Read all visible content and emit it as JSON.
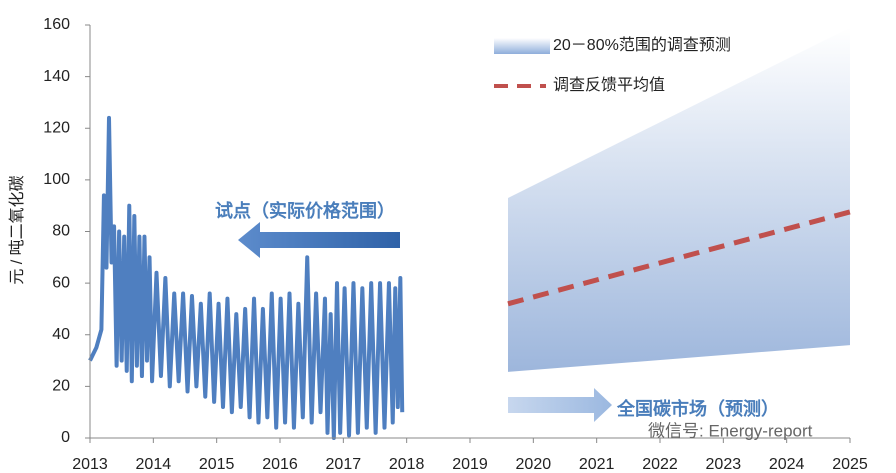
{
  "chart_data": {
    "type": "line",
    "y_label": "元 / 吨二氧化碳",
    "xlim": [
      2013,
      2025
    ],
    "xticks": [
      2013,
      2014,
      2015,
      2016,
      2017,
      2018,
      2019,
      2020,
      2021,
      2022,
      2023,
      2024,
      2025
    ],
    "ylim": [
      0,
      160
    ],
    "yticks": [
      0,
      20,
      40,
      60,
      80,
      100,
      120,
      140,
      160
    ],
    "grid": false,
    "series": [
      {
        "color": "#4f7fc0",
        "x": [
          2013.0,
          2013.1,
          2013.18,
          2013.22,
          2013.26,
          2013.3,
          2013.34,
          2013.38,
          2013.42,
          2013.46,
          2013.5,
          2013.54,
          2013.58,
          2013.62,
          2013.66,
          2013.7,
          2013.74,
          2013.78,
          2013.82,
          2013.86,
          2013.9,
          2013.94,
          2013.98,
          2014.05,
          2014.12,
          2014.19,
          2014.26,
          2014.33,
          2014.4,
          2014.47,
          2014.54,
          2014.61,
          2014.68,
          2014.75,
          2014.82,
          2014.89,
          2014.96,
          2015.03,
          2015.1,
          2015.17,
          2015.24,
          2015.31,
          2015.38,
          2015.45,
          2015.52,
          2015.59,
          2015.66,
          2015.73,
          2015.8,
          2015.87,
          2015.94,
          2016.01,
          2016.08,
          2016.15,
          2016.22,
          2016.29,
          2016.36,
          2016.43,
          2016.5,
          2016.57,
          2016.64,
          2016.71,
          2016.75,
          2016.8,
          2016.85,
          2016.9,
          2016.95,
          2017.02,
          2017.09,
          2017.16,
          2017.23,
          2017.3,
          2017.37,
          2017.44,
          2017.51,
          2017.58,
          2017.65,
          2017.72,
          2017.78,
          2017.82,
          2017.86,
          2017.9,
          2017.93
        ],
        "values": [
          30,
          35,
          42,
          94,
          66,
          124,
          68,
          82,
          28,
          80,
          30,
          78,
          26,
          90,
          22,
          86,
          28,
          78,
          24,
          78,
          30,
          70,
          22,
          64,
          24,
          62,
          20,
          56,
          22,
          56,
          18,
          55,
          20,
          52,
          16,
          56,
          14,
          52,
          12,
          54,
          10,
          48,
          12,
          50,
          8,
          54,
          6,
          50,
          8,
          56,
          4,
          54,
          6,
          56,
          4,
          52,
          8,
          70,
          6,
          56,
          10,
          54,
          2,
          48,
          0,
          60,
          2,
          58,
          1,
          60,
          2,
          58,
          4,
          60,
          2,
          60,
          4,
          60,
          6,
          58,
          12,
          62,
          10
        ]
      },
      {
        "name": "20－80%范围的调查预测",
        "color": "#a9c0e2",
        "x": [
          2019.6,
          2025
        ],
        "low": [
          25.6,
          36
        ],
        "high": [
          93,
          159
        ]
      },
      {
        "name": "调查反馈平均值",
        "color": "#c0504d",
        "dashed": true,
        "x": [
          2019.6,
          2025
        ],
        "values": [
          52,
          87.6
        ]
      }
    ],
    "annotations": [
      "试点（实际价格范围）",
      "全国碳市场（预测）"
    ],
    "watermark": "微信号: Energy-report"
  }
}
